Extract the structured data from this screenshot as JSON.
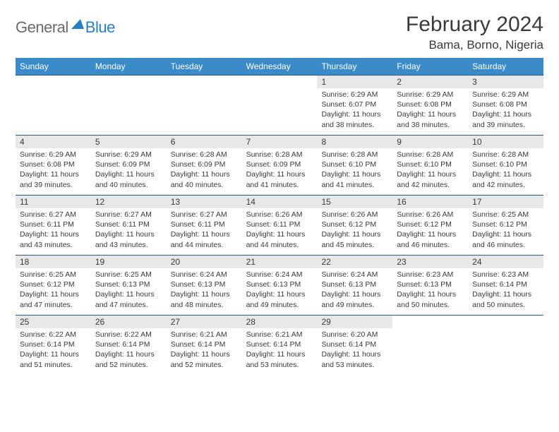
{
  "logo": {
    "text_general": "General",
    "text_blue": "Blue"
  },
  "title": "February 2024",
  "location": "Bama, Borno, Nigeria",
  "colors": {
    "header_bg": "#3b8bc9",
    "header_text": "#ffffff",
    "day_number_bg": "#e8e8e8",
    "week_border": "#2a5a8a",
    "text": "#3a3a3a",
    "logo_gray": "#6b6b6b",
    "logo_blue": "#2a7fbf"
  },
  "day_names": [
    "Sunday",
    "Monday",
    "Tuesday",
    "Wednesday",
    "Thursday",
    "Friday",
    "Saturday"
  ],
  "weeks": [
    [
      {
        "n": "",
        "sunrise": "",
        "sunset": "",
        "daylight": ""
      },
      {
        "n": "",
        "sunrise": "",
        "sunset": "",
        "daylight": ""
      },
      {
        "n": "",
        "sunrise": "",
        "sunset": "",
        "daylight": ""
      },
      {
        "n": "",
        "sunrise": "",
        "sunset": "",
        "daylight": ""
      },
      {
        "n": "1",
        "sunrise": "Sunrise: 6:29 AM",
        "sunset": "Sunset: 6:07 PM",
        "daylight": "Daylight: 11 hours and 38 minutes."
      },
      {
        "n": "2",
        "sunrise": "Sunrise: 6:29 AM",
        "sunset": "Sunset: 6:08 PM",
        "daylight": "Daylight: 11 hours and 38 minutes."
      },
      {
        "n": "3",
        "sunrise": "Sunrise: 6:29 AM",
        "sunset": "Sunset: 6:08 PM",
        "daylight": "Daylight: 11 hours and 39 minutes."
      }
    ],
    [
      {
        "n": "4",
        "sunrise": "Sunrise: 6:29 AM",
        "sunset": "Sunset: 6:08 PM",
        "daylight": "Daylight: 11 hours and 39 minutes."
      },
      {
        "n": "5",
        "sunrise": "Sunrise: 6:29 AM",
        "sunset": "Sunset: 6:09 PM",
        "daylight": "Daylight: 11 hours and 40 minutes."
      },
      {
        "n": "6",
        "sunrise": "Sunrise: 6:28 AM",
        "sunset": "Sunset: 6:09 PM",
        "daylight": "Daylight: 11 hours and 40 minutes."
      },
      {
        "n": "7",
        "sunrise": "Sunrise: 6:28 AM",
        "sunset": "Sunset: 6:09 PM",
        "daylight": "Daylight: 11 hours and 41 minutes."
      },
      {
        "n": "8",
        "sunrise": "Sunrise: 6:28 AM",
        "sunset": "Sunset: 6:10 PM",
        "daylight": "Daylight: 11 hours and 41 minutes."
      },
      {
        "n": "9",
        "sunrise": "Sunrise: 6:28 AM",
        "sunset": "Sunset: 6:10 PM",
        "daylight": "Daylight: 11 hours and 42 minutes."
      },
      {
        "n": "10",
        "sunrise": "Sunrise: 6:28 AM",
        "sunset": "Sunset: 6:10 PM",
        "daylight": "Daylight: 11 hours and 42 minutes."
      }
    ],
    [
      {
        "n": "11",
        "sunrise": "Sunrise: 6:27 AM",
        "sunset": "Sunset: 6:11 PM",
        "daylight": "Daylight: 11 hours and 43 minutes."
      },
      {
        "n": "12",
        "sunrise": "Sunrise: 6:27 AM",
        "sunset": "Sunset: 6:11 PM",
        "daylight": "Daylight: 11 hours and 43 minutes."
      },
      {
        "n": "13",
        "sunrise": "Sunrise: 6:27 AM",
        "sunset": "Sunset: 6:11 PM",
        "daylight": "Daylight: 11 hours and 44 minutes."
      },
      {
        "n": "14",
        "sunrise": "Sunrise: 6:26 AM",
        "sunset": "Sunset: 6:11 PM",
        "daylight": "Daylight: 11 hours and 44 minutes."
      },
      {
        "n": "15",
        "sunrise": "Sunrise: 6:26 AM",
        "sunset": "Sunset: 6:12 PM",
        "daylight": "Daylight: 11 hours and 45 minutes."
      },
      {
        "n": "16",
        "sunrise": "Sunrise: 6:26 AM",
        "sunset": "Sunset: 6:12 PM",
        "daylight": "Daylight: 11 hours and 46 minutes."
      },
      {
        "n": "17",
        "sunrise": "Sunrise: 6:25 AM",
        "sunset": "Sunset: 6:12 PM",
        "daylight": "Daylight: 11 hours and 46 minutes."
      }
    ],
    [
      {
        "n": "18",
        "sunrise": "Sunrise: 6:25 AM",
        "sunset": "Sunset: 6:12 PM",
        "daylight": "Daylight: 11 hours and 47 minutes."
      },
      {
        "n": "19",
        "sunrise": "Sunrise: 6:25 AM",
        "sunset": "Sunset: 6:13 PM",
        "daylight": "Daylight: 11 hours and 47 minutes."
      },
      {
        "n": "20",
        "sunrise": "Sunrise: 6:24 AM",
        "sunset": "Sunset: 6:13 PM",
        "daylight": "Daylight: 11 hours and 48 minutes."
      },
      {
        "n": "21",
        "sunrise": "Sunrise: 6:24 AM",
        "sunset": "Sunset: 6:13 PM",
        "daylight": "Daylight: 11 hours and 49 minutes."
      },
      {
        "n": "22",
        "sunrise": "Sunrise: 6:24 AM",
        "sunset": "Sunset: 6:13 PM",
        "daylight": "Daylight: 11 hours and 49 minutes."
      },
      {
        "n": "23",
        "sunrise": "Sunrise: 6:23 AM",
        "sunset": "Sunset: 6:13 PM",
        "daylight": "Daylight: 11 hours and 50 minutes."
      },
      {
        "n": "24",
        "sunrise": "Sunrise: 6:23 AM",
        "sunset": "Sunset: 6:14 PM",
        "daylight": "Daylight: 11 hours and 50 minutes."
      }
    ],
    [
      {
        "n": "25",
        "sunrise": "Sunrise: 6:22 AM",
        "sunset": "Sunset: 6:14 PM",
        "daylight": "Daylight: 11 hours and 51 minutes."
      },
      {
        "n": "26",
        "sunrise": "Sunrise: 6:22 AM",
        "sunset": "Sunset: 6:14 PM",
        "daylight": "Daylight: 11 hours and 52 minutes."
      },
      {
        "n": "27",
        "sunrise": "Sunrise: 6:21 AM",
        "sunset": "Sunset: 6:14 PM",
        "daylight": "Daylight: 11 hours and 52 minutes."
      },
      {
        "n": "28",
        "sunrise": "Sunrise: 6:21 AM",
        "sunset": "Sunset: 6:14 PM",
        "daylight": "Daylight: 11 hours and 53 minutes."
      },
      {
        "n": "29",
        "sunrise": "Sunrise: 6:20 AM",
        "sunset": "Sunset: 6:14 PM",
        "daylight": "Daylight: 11 hours and 53 minutes."
      },
      {
        "n": "",
        "sunrise": "",
        "sunset": "",
        "daylight": ""
      },
      {
        "n": "",
        "sunrise": "",
        "sunset": "",
        "daylight": ""
      }
    ]
  ]
}
